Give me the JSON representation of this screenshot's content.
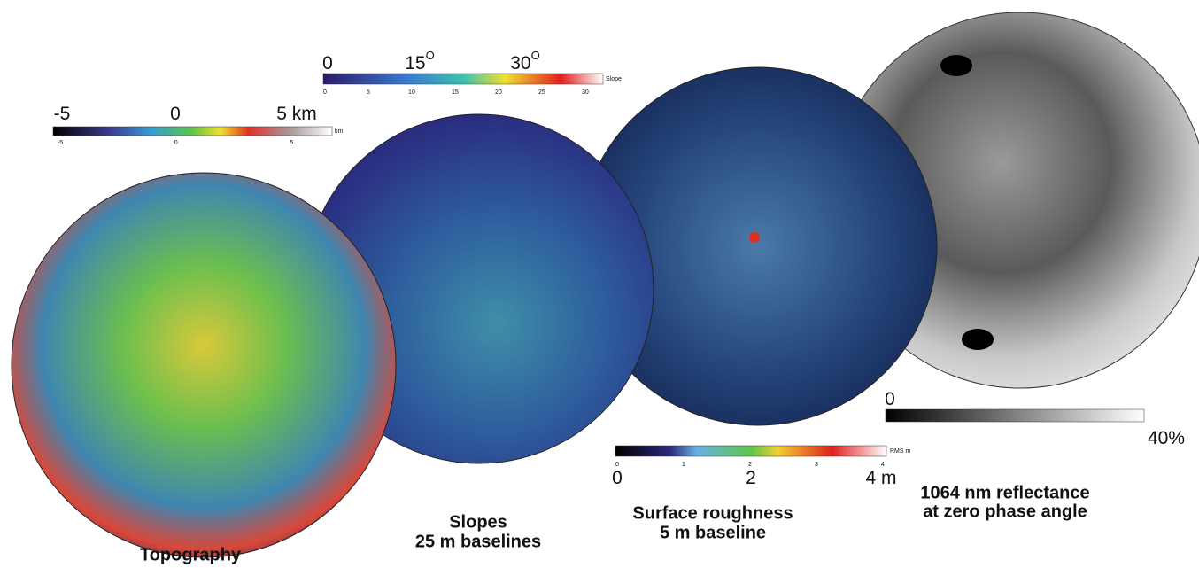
{
  "panels": [
    {
      "title": [
        "Topography"
      ],
      "colorbar": {
        "labels": [
          {
            "text": "-5"
          },
          {
            "text": "0"
          },
          {
            "text": "5 km"
          }
        ],
        "ticks": [
          "-5",
          "0",
          "5"
        ],
        "unit": "km"
      }
    },
    {
      "title": [
        "Slopes",
        "25 m baselines"
      ],
      "colorbar": {
        "labels": [
          {
            "text": "0"
          },
          {
            "text": "15",
            "sup": "O"
          },
          {
            "text": "30",
            "sup": "O"
          }
        ],
        "ticks": [
          "0",
          "5",
          "10",
          "15",
          "20",
          "25",
          "30"
        ],
        "unit": "Slope"
      }
    },
    {
      "title": [
        "Surface roughness",
        "5 m baseline"
      ],
      "colorbar": {
        "labels": [
          {
            "text": "0"
          },
          {
            "text": "2"
          },
          {
            "text": "4 m"
          }
        ],
        "ticks": [
          "0",
          "1",
          "2",
          "3",
          "4"
        ],
        "unit": "RMS m"
      }
    },
    {
      "title": [
        "1064 nm reflectance",
        "at zero phase angle"
      ],
      "colorbar": {
        "labels": [
          {
            "text": "0"
          },
          {
            "text": "40%"
          }
        ]
      }
    }
  ]
}
